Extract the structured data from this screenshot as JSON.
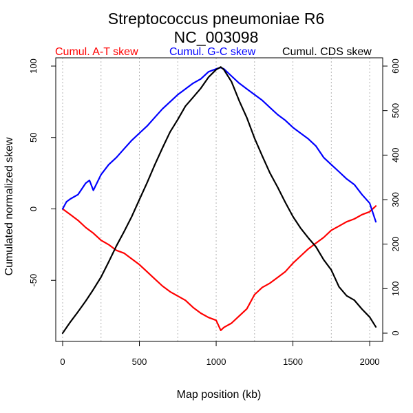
{
  "chart_data": {
    "type": "line",
    "title": "Streptococcus pneumoniae R6",
    "subtitle": "NC_003098",
    "xlabel": "Map position (kb)",
    "ylabel": "Cumulated normalized skew",
    "xlim": [
      0,
      2040
    ],
    "ylim": [
      -87,
      100
    ],
    "y2lim": [
      0,
      600
    ],
    "x_ticks": [
      0,
      500,
      1000,
      1500,
      2000
    ],
    "y_ticks": [
      100,
      50,
      0,
      -50
    ],
    "y2_ticks": [
      0,
      100,
      200,
      300,
      400,
      500,
      600
    ],
    "grid": "vertical-dotted",
    "legend_position": "top",
    "series": [
      {
        "name": "Cumul. A-T skew",
        "color": "#ff0000",
        "axis": "left",
        "x": [
          0,
          25,
          50,
          100,
          150,
          200,
          250,
          300,
          350,
          400,
          450,
          500,
          550,
          600,
          650,
          700,
          750,
          800,
          850,
          900,
          950,
          1000,
          1030,
          1050,
          1100,
          1150,
          1200,
          1250,
          1300,
          1350,
          1400,
          1450,
          1500,
          1550,
          1600,
          1650,
          1700,
          1750,
          1800,
          1850,
          1900,
          1950,
          2000,
          2040
        ],
        "y": [
          0,
          -2,
          -4,
          -8,
          -13,
          -17,
          -22,
          -25,
          -29,
          -31,
          -35,
          -39,
          -44,
          -49,
          -54,
          -58,
          -61,
          -64,
          -69,
          -73,
          -76,
          -78,
          -85,
          -83,
          -80,
          -75,
          -70,
          -60,
          -55,
          -52,
          -48,
          -44,
          -38,
          -33,
          -28,
          -24,
          -20,
          -15,
          -12,
          -9,
          -7,
          -4,
          -2,
          2
        ]
      },
      {
        "name": "Cumul. G-C skew",
        "color": "#0000ff",
        "axis": "left",
        "x": [
          0,
          25,
          50,
          100,
          150,
          175,
          200,
          250,
          300,
          350,
          400,
          450,
          500,
          550,
          600,
          650,
          700,
          750,
          800,
          850,
          900,
          950,
          1000,
          1030,
          1050,
          1100,
          1150,
          1200,
          1250,
          1300,
          1350,
          1400,
          1450,
          1500,
          1550,
          1600,
          1650,
          1700,
          1750,
          1800,
          1850,
          1900,
          1950,
          2000,
          2040
        ],
        "y": [
          0,
          5,
          7,
          10,
          18,
          20,
          13,
          24,
          31,
          36,
          42,
          48,
          53,
          58,
          64,
          70,
          75,
          80,
          84,
          88,
          91,
          96,
          98,
          99,
          98,
          93,
          88,
          84,
          80,
          76,
          71,
          66,
          62,
          57,
          53,
          49,
          44,
          36,
          31,
          26,
          21,
          17,
          10,
          4,
          -9
        ]
      },
      {
        "name": "Cumul. CDS skew",
        "color": "#000000",
        "axis": "right",
        "x": [
          0,
          50,
          100,
          150,
          200,
          250,
          300,
          350,
          400,
          450,
          500,
          550,
          600,
          650,
          700,
          750,
          800,
          850,
          900,
          950,
          1000,
          1030,
          1050,
          1100,
          1150,
          1200,
          1250,
          1300,
          1350,
          1400,
          1450,
          1500,
          1550,
          1600,
          1650,
          1700,
          1750,
          1800,
          1850,
          1900,
          1950,
          2000,
          2040
        ],
        "y": [
          0,
          25,
          48,
          72,
          98,
          126,
          160,
          196,
          228,
          262,
          300,
          338,
          378,
          416,
          452,
          480,
          510,
          530,
          550,
          575,
          592,
          598,
          592,
          565,
          522,
          484,
          438,
          398,
          360,
          328,
          294,
          262,
          236,
          214,
          194,
          165,
          142,
          104,
          84,
          74,
          54,
          36,
          14
        ]
      }
    ]
  }
}
